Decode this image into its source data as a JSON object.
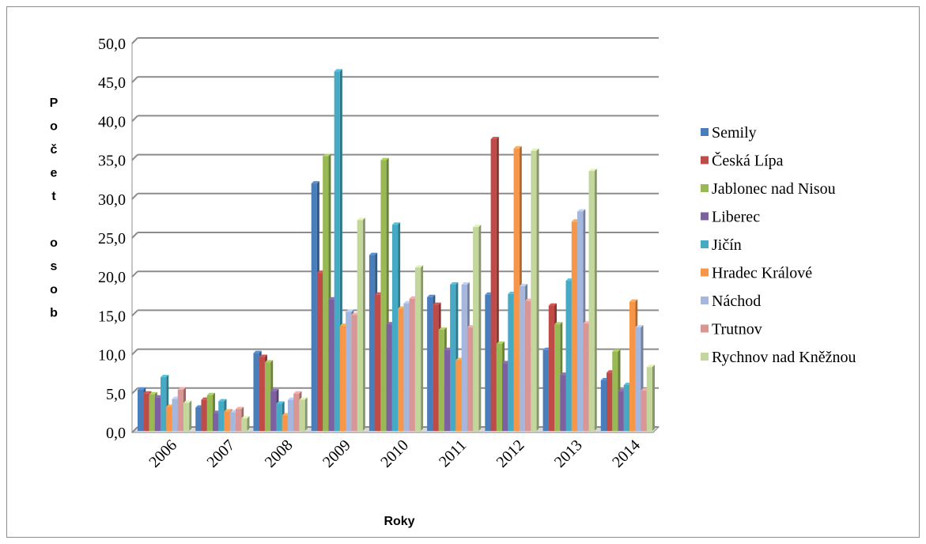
{
  "chart_data": {
    "type": "bar",
    "title": "",
    "xlabel": "Roky",
    "ylabel_letters": [
      "P",
      "o",
      "č",
      "e",
      "t",
      "",
      "o",
      "s",
      "o",
      "b"
    ],
    "ylim": [
      0,
      50
    ],
    "ytick_step": 5,
    "ytick_labels": [
      "0,0",
      "5,0",
      "10,0",
      "15,0",
      "20,0",
      "25,0",
      "30,0",
      "35,0",
      "40,0",
      "45,0",
      "50,0"
    ],
    "grid": true,
    "legend_position": "right",
    "categories": [
      "2006",
      "2007",
      "2008",
      "2009",
      "2010",
      "2011",
      "2012",
      "2013",
      "2014"
    ],
    "series": [
      {
        "name": "Semily",
        "color": "#4a7ebb",
        "values": [
          5.3,
          3.0,
          10.0,
          31.8,
          22.6,
          17.2,
          17.5,
          10.4,
          6.5
        ]
      },
      {
        "name": "Česká Lípa",
        "color": "#be4b48",
        "values": [
          4.8,
          4.0,
          9.5,
          20.3,
          17.5,
          16.2,
          37.5,
          16.1,
          7.5
        ]
      },
      {
        "name": "Jablonec nad Nisou",
        "color": "#98b954",
        "values": [
          4.7,
          4.6,
          8.8,
          35.3,
          34.8,
          13.0,
          11.2,
          13.7,
          10.2
        ]
      },
      {
        "name": "Liberec",
        "color": "#7d60a0",
        "values": [
          4.3,
          2.3,
          5.1,
          16.9,
          13.7,
          10.4,
          8.7,
          7.2,
          5.1
        ]
      },
      {
        "name": "Jičín",
        "color": "#46aac5",
        "values": [
          6.9,
          3.8,
          3.5,
          46.2,
          26.5,
          18.8,
          17.6,
          19.3,
          5.9
        ]
      },
      {
        "name": "Hradec Králové",
        "color": "#f79646",
        "values": [
          3.1,
          2.5,
          2.0,
          13.5,
          15.7,
          9.1,
          36.3,
          26.9,
          16.6
        ]
      },
      {
        "name": "Náchod",
        "color": "#a5b7dd",
        "values": [
          4.1,
          2.4,
          4.0,
          15.3,
          16.4,
          18.8,
          18.6,
          28.2,
          13.3
        ]
      },
      {
        "name": "Trutnov",
        "color": "#d99694",
        "values": [
          5.3,
          2.8,
          4.8,
          14.9,
          17.0,
          13.3,
          16.7,
          13.8,
          5.2
        ]
      },
      {
        "name": "Rychnov nad Kněžnou",
        "color": "#c3d69b",
        "values": [
          3.6,
          1.6,
          4.0,
          27.1,
          21.0,
          26.2,
          36.0,
          33.4,
          8.2
        ]
      }
    ]
  }
}
